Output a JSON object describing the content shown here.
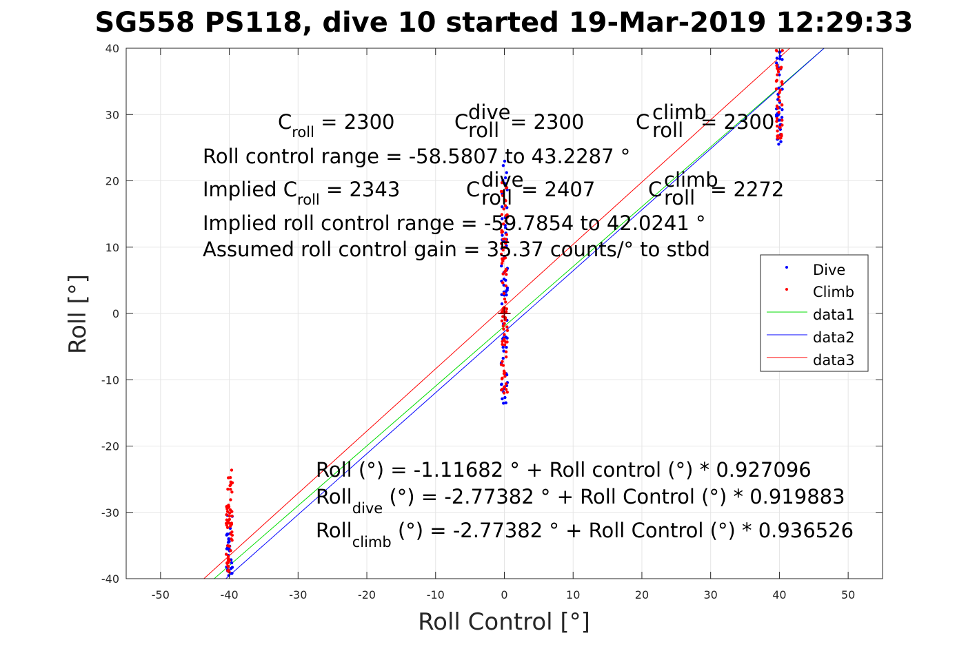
{
  "chart_data": {
    "type": "scatter",
    "title": "SG558 PS118, dive 10 started 19-Mar-2019 12:29:33",
    "xlabel": "Roll Control [°]",
    "ylabel": "Roll [°]",
    "xlim": [
      -55,
      55
    ],
    "ylim": [
      -40,
      40
    ],
    "xticks": [
      -50,
      -40,
      -30,
      -20,
      -10,
      0,
      10,
      20,
      30,
      40,
      50
    ],
    "yticks": [
      -40,
      -30,
      -20,
      -10,
      0,
      10,
      20,
      30,
      40
    ],
    "xtick_labels": [
      "-50",
      "-40",
      "-30",
      "-20",
      "-10",
      "0",
      "10",
      "20",
      "30",
      "40",
      "50"
    ],
    "ytick_labels": [
      "-40",
      "-30",
      "-20",
      "-10",
      "0",
      "10",
      "20",
      "30",
      "40"
    ],
    "grid": true,
    "legend_position": "right",
    "colors": {
      "dive": "#0000ff",
      "climb": "#ff0000",
      "data1": "#00dd00",
      "data2": "#0000ff",
      "data3": "#ff0000",
      "marker": "#7a0000"
    },
    "series": [
      {
        "name": "Dive",
        "kind": "scatter",
        "clusters": [
          {
            "x": -40,
            "y_range": [
              -40,
              -30
            ],
            "count": 30
          },
          {
            "x": 0,
            "y_range": [
              -13.8,
              24
            ],
            "count": 70
          },
          {
            "x": 40,
            "y_range": [
              25,
              40
            ],
            "count": 40
          }
        ]
      },
      {
        "name": "Climb",
        "kind": "scatter",
        "clusters": [
          {
            "x": -40,
            "y_range": [
              -39,
              -23
            ],
            "count": 60
          },
          {
            "x": 0,
            "y_range": [
              -12,
              20
            ],
            "count": 90
          },
          {
            "x": 40,
            "y_range": [
              25,
              40
            ],
            "count": 40
          }
        ]
      },
      {
        "name": "data1",
        "kind": "line",
        "x": [
          -42.2,
          46.5
        ],
        "y": [
          -40,
          40
        ]
      },
      {
        "name": "data2",
        "kind": "line",
        "x": [
          -40.5,
          46.5
        ],
        "y": [
          -40,
          40
        ]
      },
      {
        "name": "data3",
        "kind": "line",
        "x": [
          -43.7,
          41.5
        ],
        "y": [
          -40,
          40
        ]
      }
    ],
    "annotations": {
      "line1": {
        "c1": "C",
        "s1": "roll",
        "v1": " = 2300",
        "c2": "C",
        "p2": "dive",
        "s2": "roll",
        "v2": " = 2300",
        "c3": "C",
        "p3": "climb",
        "s3": "roll",
        "v3": " = 2300"
      },
      "line2": "Roll control range = -58.5807 to 43.2287 °",
      "line3": {
        "c1": "Implied C",
        "s1": "roll",
        "v1": " = 2343",
        "c2": "C",
        "p2": "dive",
        "s2": "roll",
        "v2": " = 2407",
        "c3": "C",
        "p3": "climb",
        "s3": "roll",
        "v3": " = 2272"
      },
      "line4": "Implied roll control range = -59.7854 to 42.0241 °",
      "line5": "Assumed roll control gain = 35.37 counts/° to stbd",
      "fit1": "Roll (°) = -1.11682 ° + Roll control (°) * 0.927096",
      "fit2_main": "Roll",
      "fit2_sub": "dive",
      "fit2_rest": " (°) = -2.77382 ° + Roll Control (°) * 0.919883",
      "fit3_main": "Roll",
      "fit3_sub": "climb",
      "fit3_rest": " (°) = -2.77382 ° + Roll Control (°) * 0.936526"
    },
    "legend": [
      "Dive",
      "Climb",
      "data1",
      "data2",
      "data3"
    ]
  }
}
